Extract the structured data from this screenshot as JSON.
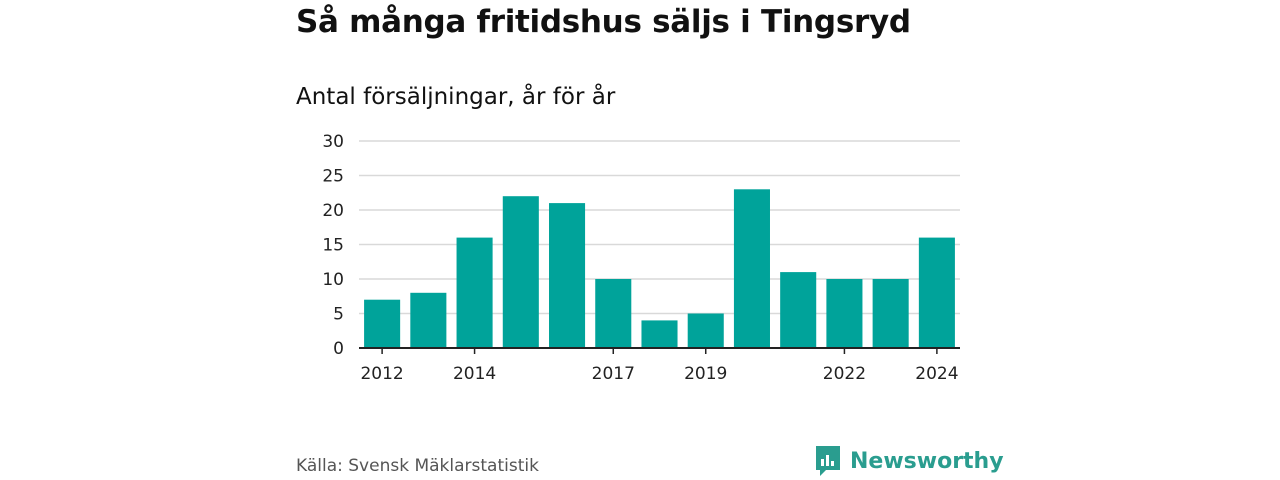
{
  "title": "Så många fritidshus säljs i Tingsryd",
  "subtitle": "Antal försäljningar, år för år",
  "source": "Källa: Svensk Mäklarstatistik",
  "brand": {
    "name": "Newsworthy",
    "icon": "newsworthy-logo-icon",
    "color": "#2a9d8f"
  },
  "chart_data": {
    "type": "bar",
    "categories": [
      "2012",
      "2013",
      "2014",
      "2015",
      "2016",
      "2017",
      "2018",
      "2019",
      "2020",
      "2021",
      "2022",
      "2023",
      "2024"
    ],
    "values": [
      7,
      8,
      16,
      22,
      21,
      10,
      4,
      5,
      23,
      11,
      10,
      10,
      16
    ],
    "x_tick_labels": [
      "2012",
      "2014",
      "2017",
      "2019",
      "2022",
      "2024"
    ],
    "y_ticks": [
      0,
      5,
      10,
      15,
      20,
      25,
      30
    ],
    "ylim": [
      0,
      30
    ],
    "bar_color": "#00a39a",
    "grid": true
  }
}
